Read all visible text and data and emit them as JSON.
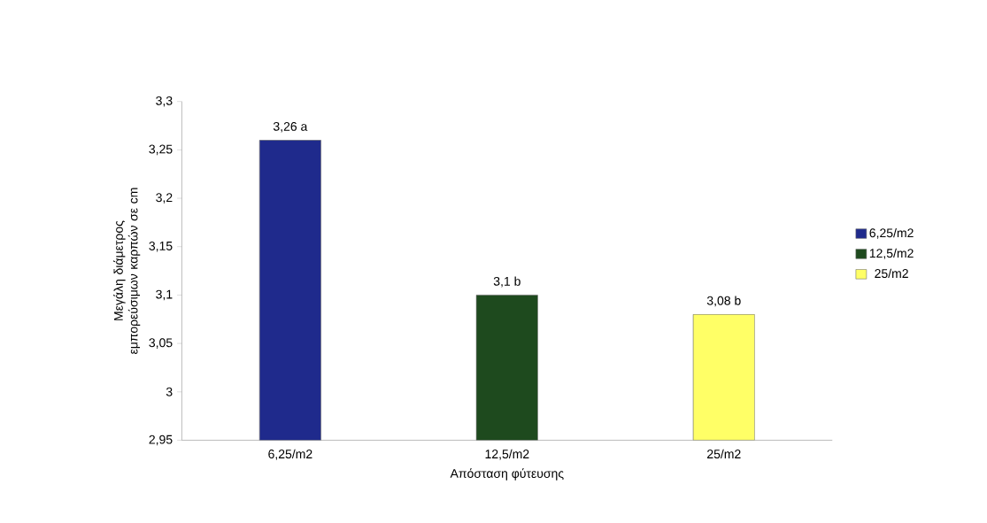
{
  "chart_data": {
    "type": "bar",
    "xlabel": "Απόσταση φύτευσης",
    "ylabel": "Μεγάλη διάμετρος εμπορεύσιμων καρπών σε cm",
    "categories": [
      "6,25/m2",
      "12,5/m2",
      "25/m2"
    ],
    "series": [
      {
        "name": "6,25/m2",
        "color": "#1f2a8c",
        "values": [
          3.26,
          null,
          null
        ],
        "value_labels": [
          "3,26 a",
          null,
          null
        ]
      },
      {
        "name": "12,5/m2",
        "color": "#1e4a1e",
        "values": [
          null,
          3.1,
          null
        ],
        "value_labels": [
          null,
          "3,1 b",
          null
        ]
      },
      {
        "name": "25/m2",
        "color": "#ffff66",
        "values": [
          null,
          null,
          3.08
        ],
        "value_labels": [
          null,
          null,
          "3,08 b"
        ]
      }
    ],
    "ylim": [
      2.95,
      3.3
    ],
    "yticks": [
      {
        "value": 2.95,
        "label": "2,95"
      },
      {
        "value": 3,
        "label": "3"
      },
      {
        "value": 3.05,
        "label": "3,05"
      },
      {
        "value": 3.1,
        "label": "3,1"
      },
      {
        "value": 3.15,
        "label": "3,15"
      },
      {
        "value": 3.2,
        "label": "3,2"
      },
      {
        "value": 3.25,
        "label": "3,25"
      },
      {
        "value": 3.3,
        "label": "3,3"
      }
    ],
    "legend": "right"
  }
}
